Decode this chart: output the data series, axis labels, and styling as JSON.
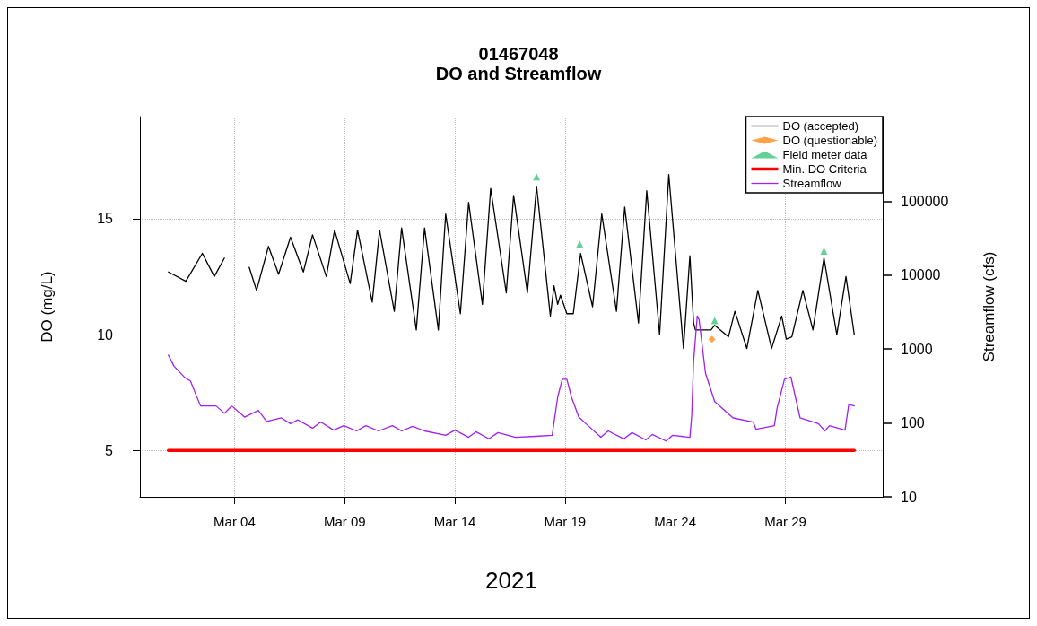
{
  "chart_data": {
    "type": "line",
    "title": "01467048",
    "subtitle": "DO and Streamflow",
    "xlabel": "2021",
    "ylabel": "DO (mg/L)",
    "y2label": "Streamflow (cfs)",
    "xlim": [
      "2021-02-27T17:00",
      "2021-04-02T10:00"
    ],
    "xticks": [
      {
        "value": "2021-03-04",
        "label": "Mar 04"
      },
      {
        "value": "2021-03-09",
        "label": "Mar 09"
      },
      {
        "value": "2021-03-14",
        "label": "Mar 14"
      },
      {
        "value": "2021-03-19",
        "label": "Mar 19"
      },
      {
        "value": "2021-03-24",
        "label": "Mar 24"
      },
      {
        "value": "2021-03-29",
        "label": "Mar 29"
      }
    ],
    "ylim": [
      3,
      19.4
    ],
    "yticks": [
      5,
      10,
      15
    ],
    "y2lim": [
      10,
      1400000
    ],
    "y2ticks": [
      10,
      100,
      1000,
      10000,
      100000
    ],
    "log": "y2",
    "grid": true,
    "legend": "top right",
    "series": [
      {
        "name": "DO (accepted)",
        "color": "#000000",
        "marker": "none",
        "x": [
          "2021-03-01T00:00",
          "2021-03-01T19:00",
          "2021-03-02T13:00",
          "2021-03-03T02:00",
          "2021-03-03T13:00",
          "2021-03-04T00:00",
          "2021-03-04T16:00",
          "2021-03-05T00:00",
          "2021-03-05T13:00",
          "2021-03-06T00:00",
          "2021-03-06T13:00",
          "2021-03-07T03:00",
          "2021-03-07T13:00",
          "2021-03-08T04:00",
          "2021-03-08T13:00",
          "2021-03-09T06:00",
          "2021-03-09T14:00",
          "2021-03-10T06:00",
          "2021-03-10T14:00",
          "2021-03-11T06:00",
          "2021-03-11T14:00",
          "2021-03-12T06:00",
          "2021-03-12T15:00",
          "2021-03-13T06:00",
          "2021-03-13T14:00",
          "2021-03-14T06:00",
          "2021-03-14T15:00",
          "2021-03-15T06:00",
          "2021-03-15T15:00",
          "2021-03-16T08:00",
          "2021-03-16T16:00",
          "2021-03-17T07:00",
          "2021-03-17T17:00",
          "2021-03-18T08:00",
          "2021-03-18T12:00",
          "2021-03-18T16:00",
          "2021-03-18T19:00",
          "2021-03-19T02:00",
          "2021-03-19T09:00",
          "2021-03-19T17:00",
          "2021-03-20T06:00",
          "2021-03-20T16:00",
          "2021-03-21T08:00",
          "2021-03-21T17:00",
          "2021-03-22T08:00",
          "2021-03-22T17:00",
          "2021-03-23T07:00",
          "2021-03-23T17:00",
          "2021-03-24T09:00",
          "2021-03-24T16:00",
          "2021-03-24T20:00",
          "2021-03-24T22:00",
          "2021-03-25T15:00",
          "2021-03-25T19:00",
          "2021-03-26T10:00",
          "2021-03-26T17:00",
          "2021-03-27T06:00",
          "2021-03-27T18:00",
          "2021-03-28T09:00",
          "2021-03-28T20:00",
          "2021-03-29T01:00",
          "2021-03-29T07:00",
          "2021-03-29T19:00",
          "2021-03-30T06:00",
          "2021-03-30T18:00",
          "2021-03-31T08:00",
          "2021-03-31T18:00",
          "2021-04-01T03:00"
        ],
        "values": [
          12.7,
          12.3,
          13.5,
          12.5,
          13.3,
          null,
          12.9,
          11.9,
          13.8,
          12.6,
          14.2,
          12.7,
          14.3,
          12.5,
          14.5,
          12.2,
          14.5,
          11.4,
          14.5,
          11.0,
          14.6,
          10.2,
          14.6,
          10.2,
          15.2,
          10.9,
          15.7,
          11.3,
          16.3,
          11.8,
          16.0,
          11.8,
          16.4,
          10.8,
          12.1,
          11.3,
          11.7,
          10.9,
          10.9,
          13.5,
          11.2,
          15.2,
          11.0,
          15.5,
          10.5,
          16.2,
          10.0,
          16.9,
          9.4,
          13.4,
          10.5,
          10.2,
          10.2,
          10.4,
          9.9,
          11.0,
          9.4,
          11.9,
          9.4,
          10.8,
          9.8,
          9.9,
          11.9,
          10.2,
          13.3,
          10.0,
          12.5,
          10.0
        ]
      },
      {
        "name": "DO (questionable)",
        "type": "scatter",
        "color": "#ff8c1a",
        "marker": "diamond",
        "x": [
          "2021-03-25T16:00"
        ],
        "values": [
          9.8
        ]
      },
      {
        "name": "Field meter data",
        "type": "scatter",
        "color": "#3cc47c",
        "marker": "triangle",
        "x": [
          "2021-03-17T17:00",
          "2021-03-19T16:00",
          "2021-03-25T19:00",
          "2021-03-30T18:00"
        ],
        "values": [
          16.8,
          13.9,
          10.6,
          13.6
        ]
      },
      {
        "name": "Min. DO Criteria",
        "color": "#ff0000",
        "marker": "none",
        "x": [
          "2021-03-01T00:00",
          "2021-04-01T03:00"
        ],
        "values": [
          5,
          5
        ]
      },
      {
        "name": "Streamflow",
        "color": "#a020f0",
        "marker": "none",
        "axis": "y2",
        "x": [
          "2021-03-01T00:00",
          "2021-03-01T06:00",
          "2021-03-01T18:00",
          "2021-03-02T00:00",
          "2021-03-02T11:00",
          "2021-03-03T04:00",
          "2021-03-03T13:00",
          "2021-03-03T21:00",
          "2021-03-04T11:00",
          "2021-03-05T02:00",
          "2021-03-05T11:00",
          "2021-03-06T03:00",
          "2021-03-06T13:00",
          "2021-03-06T21:00",
          "2021-03-07T13:00",
          "2021-03-07T22:00",
          "2021-03-08T12:00",
          "2021-03-08T23:00",
          "2021-03-09T13:00",
          "2021-03-09T23:00",
          "2021-03-10T13:00",
          "2021-03-11T04:00",
          "2021-03-11T14:00",
          "2021-03-12T02:00",
          "2021-03-12T15:00",
          "2021-03-13T14:00",
          "2021-03-14T00:00",
          "2021-03-14T15:00",
          "2021-03-14T23:00",
          "2021-03-15T13:00",
          "2021-03-15T23:00",
          "2021-03-16T18:00",
          "2021-03-17T16:00",
          "2021-03-18T10:00",
          "2021-03-18T16:00",
          "2021-03-18T21:00",
          "2021-03-19T02:00",
          "2021-03-19T07:00",
          "2021-03-19T15:00",
          "2021-03-20T02:00",
          "2021-03-20T15:00",
          "2021-03-20T23:00",
          "2021-03-21T16:00",
          "2021-03-22T01:00",
          "2021-03-22T16:00",
          "2021-03-22T23:00",
          "2021-03-23T14:00",
          "2021-03-23T21:00",
          "2021-03-24T16:00",
          "2021-03-24T18:00",
          "2021-03-24T20:00",
          "2021-03-25T00:00",
          "2021-03-25T02:00",
          "2021-03-25T09:00",
          "2021-03-25T19:00",
          "2021-03-26T15:00",
          "2021-03-27T13:00",
          "2021-03-27T16:00",
          "2021-03-28T12:00",
          "2021-03-28T15:00",
          "2021-03-28T23:00",
          "2021-03-29T06:00",
          "2021-03-29T16:00",
          "2021-03-30T12:00",
          "2021-03-30T19:00",
          "2021-03-31T00:00",
          "2021-03-31T17:00",
          "2021-03-31T21:00",
          "2021-04-01T03:00"
        ],
        "values": [
          830,
          590,
          410,
          370,
          170,
          170,
          135,
          170,
          120,
          148,
          105,
          117,
          98,
          110,
          85,
          103,
          80,
          92,
          78,
          92,
          78,
          92,
          78,
          90,
          78,
          68,
          80,
          64,
          76,
          61,
          74,
          64,
          66,
          68,
          224,
          390,
          390,
          224,
          120,
          90,
          64,
          78,
          61,
          74,
          59,
          70,
          57,
          68,
          64,
          128,
          680,
          2800,
          2500,
          470,
          195,
          117,
          103,
          82,
          92,
          160,
          390,
          420,
          117,
          98,
          78,
          92,
          80,
          178,
          170
        ]
      }
    ]
  }
}
